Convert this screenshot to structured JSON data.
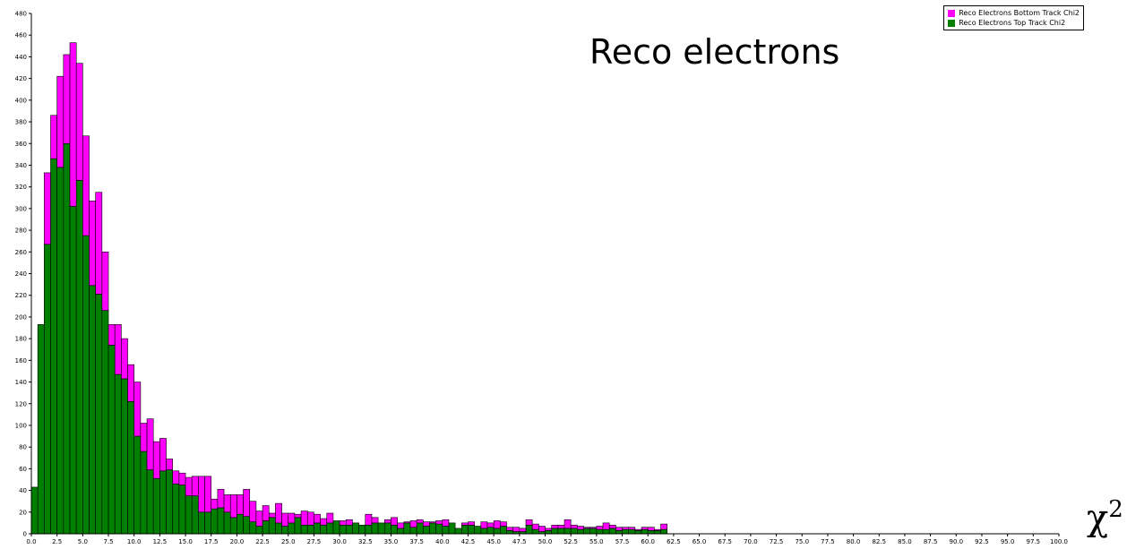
{
  "chart_data": {
    "type": "bar",
    "stacked": true,
    "title": "Reco electrons",
    "xlabel_symbol": "χ",
    "xlabel_sup": "2",
    "bin_width": 0.625,
    "ylim": [
      0,
      480
    ],
    "xlim": [
      0,
      100
    ],
    "yticks": [
      0,
      20,
      40,
      60,
      80,
      100,
      120,
      140,
      160,
      180,
      200,
      220,
      240,
      260,
      280,
      300,
      320,
      340,
      360,
      380,
      400,
      420,
      440,
      460,
      480
    ],
    "xtick_labels": [
      "0.0",
      "2.5",
      "5.0",
      "7.5",
      "10.0",
      "12.5",
      "15.0",
      "17.5",
      "20.0",
      "22.5",
      "25.0",
      "27.5",
      "30.0",
      "32.5",
      "35.0",
      "37.5",
      "40.0",
      "42.5",
      "45.0",
      "47.5",
      "50.0",
      "52.5",
      "55.0",
      "57.5",
      "60.0",
      "62.5",
      "65.0",
      "67.5",
      "70.0",
      "72.5",
      "75.0",
      "77.5",
      "80.0",
      "82.5",
      "85.0",
      "87.5",
      "90.0",
      "92.5",
      "95.0",
      "97.5",
      "100.0"
    ],
    "legend_position": "top-right",
    "series": [
      {
        "name": "Reco Electrons Top Track Chi2",
        "color": "#007f00",
        "values": [
          43,
          193,
          267,
          346,
          338,
          360,
          302,
          326,
          275,
          229,
          221,
          206,
          174,
          147,
          143,
          122,
          90,
          76,
          59,
          51,
          58,
          59,
          46,
          45,
          35,
          35,
          20,
          20,
          23,
          24,
          20,
          15,
          18,
          16,
          11,
          7,
          12,
          15,
          10,
          7,
          10,
          15,
          8,
          8,
          10,
          8,
          10,
          12,
          8,
          8,
          10,
          8,
          8,
          10,
          10,
          10,
          8,
          5,
          10,
          6,
          10,
          7,
          10,
          9,
          7,
          10,
          5,
          8,
          8,
          7,
          5,
          6,
          5,
          7,
          3,
          2,
          2,
          8,
          4,
          2,
          3,
          5,
          5,
          5,
          5,
          4,
          5,
          5,
          4,
          4,
          5,
          3,
          4,
          4,
          3,
          4,
          3,
          3,
          4
        ]
      },
      {
        "name": "Reco Electrons Bottom Track Chi2",
        "color": "#ff00ff",
        "values": [
          0,
          0,
          66,
          40,
          84,
          82,
          151,
          108,
          92,
          78,
          94,
          54,
          19,
          46,
          37,
          34,
          50,
          26,
          47,
          34,
          30,
          10,
          12,
          11,
          17,
          18,
          33,
          33,
          9,
          17,
          16,
          21,
          18,
          25,
          19,
          14,
          14,
          4,
          18,
          12,
          9,
          3,
          13,
          12,
          8,
          6,
          9,
          0,
          4,
          5,
          0,
          0,
          10,
          5,
          0,
          3,
          7,
          5,
          1,
          6,
          3,
          4,
          1,
          3,
          6,
          0,
          0,
          2,
          3,
          0,
          6,
          4,
          7,
          4,
          3,
          4,
          3,
          5,
          5,
          5,
          2,
          3,
          3,
          8,
          3,
          3,
          1,
          1,
          3,
          6,
          3,
          3,
          2,
          2,
          1,
          2,
          3,
          1,
          5
        ]
      }
    ]
  }
}
